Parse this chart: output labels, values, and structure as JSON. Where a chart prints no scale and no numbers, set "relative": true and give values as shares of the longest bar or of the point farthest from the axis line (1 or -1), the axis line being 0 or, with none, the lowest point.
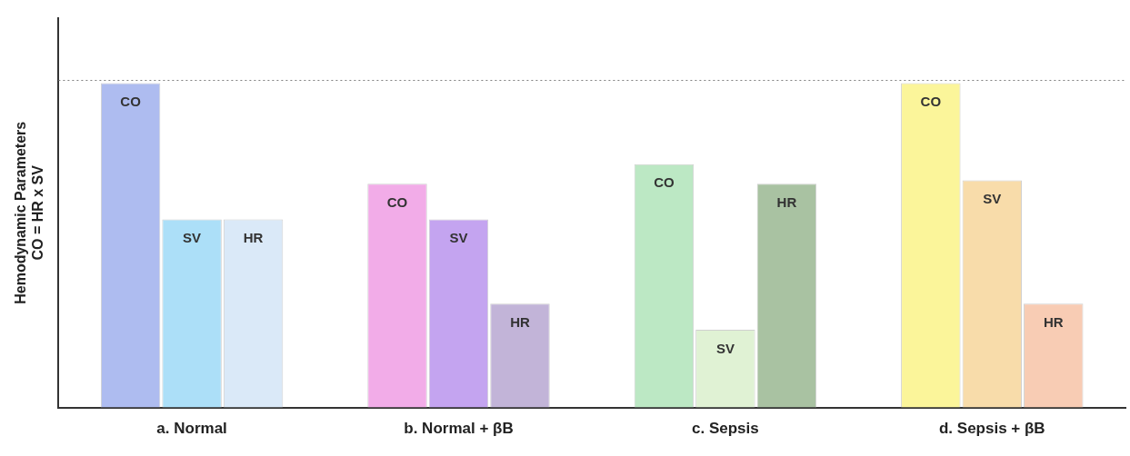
{
  "chart_data": {
    "type": "bar",
    "ylabel": "Hemodynamic Parameters\nCO = HR x SV",
    "relative": true,
    "grid": false,
    "legend": false,
    "categories": [
      "a. Normal",
      "b. Normal + βB",
      "c. Sepsis",
      "d. Sepsis + βB"
    ],
    "series": [
      {
        "name": "CO",
        "colors": [
          "#aebcf0",
          "#f2ace8",
          "#bce8c4",
          "#fbf59a"
        ],
        "values": [
          1,
          0.69,
          0.75,
          1
        ]
      },
      {
        "name": "SV",
        "colors": [
          "#acdff8",
          "#c4a4f0",
          "#e0f2d4",
          "#f8dcaa"
        ],
        "values": [
          0.58,
          0.58,
          0.24,
          0.7
        ]
      },
      {
        "name": "HR",
        "colors": [
          "#dae9f8",
          "#c2b4d8",
          "#a9c2a2",
          "#f8ccb4"
        ],
        "values": [
          0.58,
          0.32,
          0.69,
          0.32
        ]
      }
    ],
    "ref_lines": [
      {
        "axis": "y",
        "value": 1.01,
        "color": "#808080",
        "line_style": "dotted"
      }
    ]
  }
}
